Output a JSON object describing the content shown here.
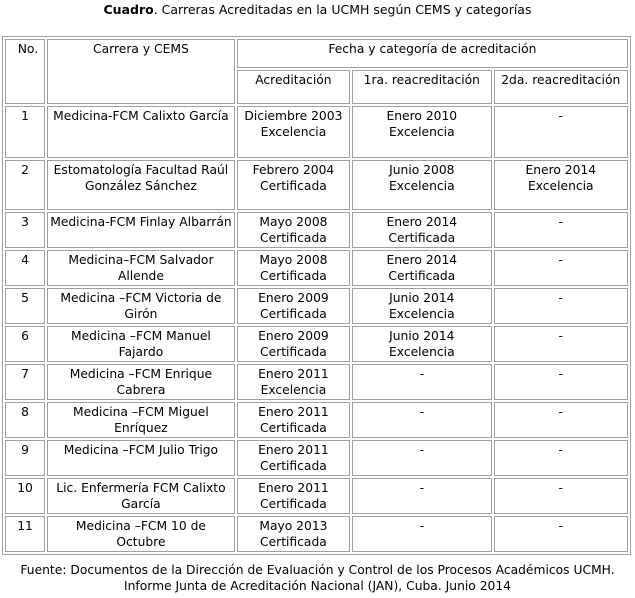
{
  "caption": {
    "bold": "Cuadro",
    "text": ". Carreras Acreditadas en la UCMH según CEMS y categorías"
  },
  "headers": {
    "no": "No.",
    "carrera": "Carrera y CEMS",
    "fecha": "Fecha y categoría de acreditación",
    "acreditacion": "Acreditación",
    "primera": "1ra. reacreditación",
    "segunda": "2da. reacreditación"
  },
  "rows": [
    {
      "no": "1",
      "carrera": "Medicina-FCM Calixto García",
      "acreditacion": "Diciembre 2003 Excelencia",
      "primera": "Enero 2010 Excelencia",
      "segunda": "-"
    },
    {
      "no": "2",
      "carrera": "Estomatología Facultad Raúl González Sánchez",
      "acreditacion": "Febrero 2004 Certificada",
      "primera": "Junio 2008 Excelencia",
      "segunda": "Enero 2014 Excelencia"
    },
    {
      "no": "3",
      "carrera": "Medicina-FCM Finlay Albarrán",
      "acreditacion": "Mayo 2008 Certificada",
      "primera": "Enero 2014 Certificada",
      "segunda": "-"
    },
    {
      "no": "4",
      "carrera": "Medicina–FCM Salvador Allende",
      "acreditacion": "Mayo 2008 Certificada",
      "primera": "Enero 2014 Certificada",
      "segunda": "-"
    },
    {
      "no": "5",
      "carrera": "Medicina –FCM Victoria de Girón",
      "acreditacion": "Enero 2009 Certificada",
      "primera": "Junio 2014 Excelencia",
      "segunda": "-"
    },
    {
      "no": "6",
      "carrera": "Medicina –FCM Manuel Fajardo",
      "acreditacion": "Enero 2009 Certificada",
      "primera": "Junio 2014 Excelencia",
      "segunda": "-"
    },
    {
      "no": "7",
      "carrera": "Medicina –FCM Enrique Cabrera",
      "acreditacion": "Enero 2011 Excelencia",
      "primera": "-",
      "segunda": "-"
    },
    {
      "no": "8",
      "carrera": "Medicina –FCM Miguel Enríquez",
      "acreditacion": "Enero 2011 Certificada",
      "primera": "-",
      "segunda": "-"
    },
    {
      "no": "9",
      "carrera": "Medicina –FCM Julio Trigo",
      "acreditacion": "Enero 2011 Certificada",
      "primera": "-",
      "segunda": "-"
    },
    {
      "no": "10",
      "carrera": "Lic. Enfermería FCM Calixto García",
      "acreditacion": "Enero 2011 Certificada",
      "primera": "-",
      "segunda": "-"
    },
    {
      "no": "11",
      "carrera": "Medicina –FCM 10 de Octubre",
      "acreditacion": "Mayo 2013 Certificada",
      "primera": "-",
      "segunda": "-"
    }
  ],
  "source": {
    "line1": "Fuente: Documentos de la Dirección de Evaluación y Control de los Procesos Académicos UCMH.",
    "line2": "Informe Junta de Acreditación Nacional (JAN), Cuba. Junio 2014"
  }
}
